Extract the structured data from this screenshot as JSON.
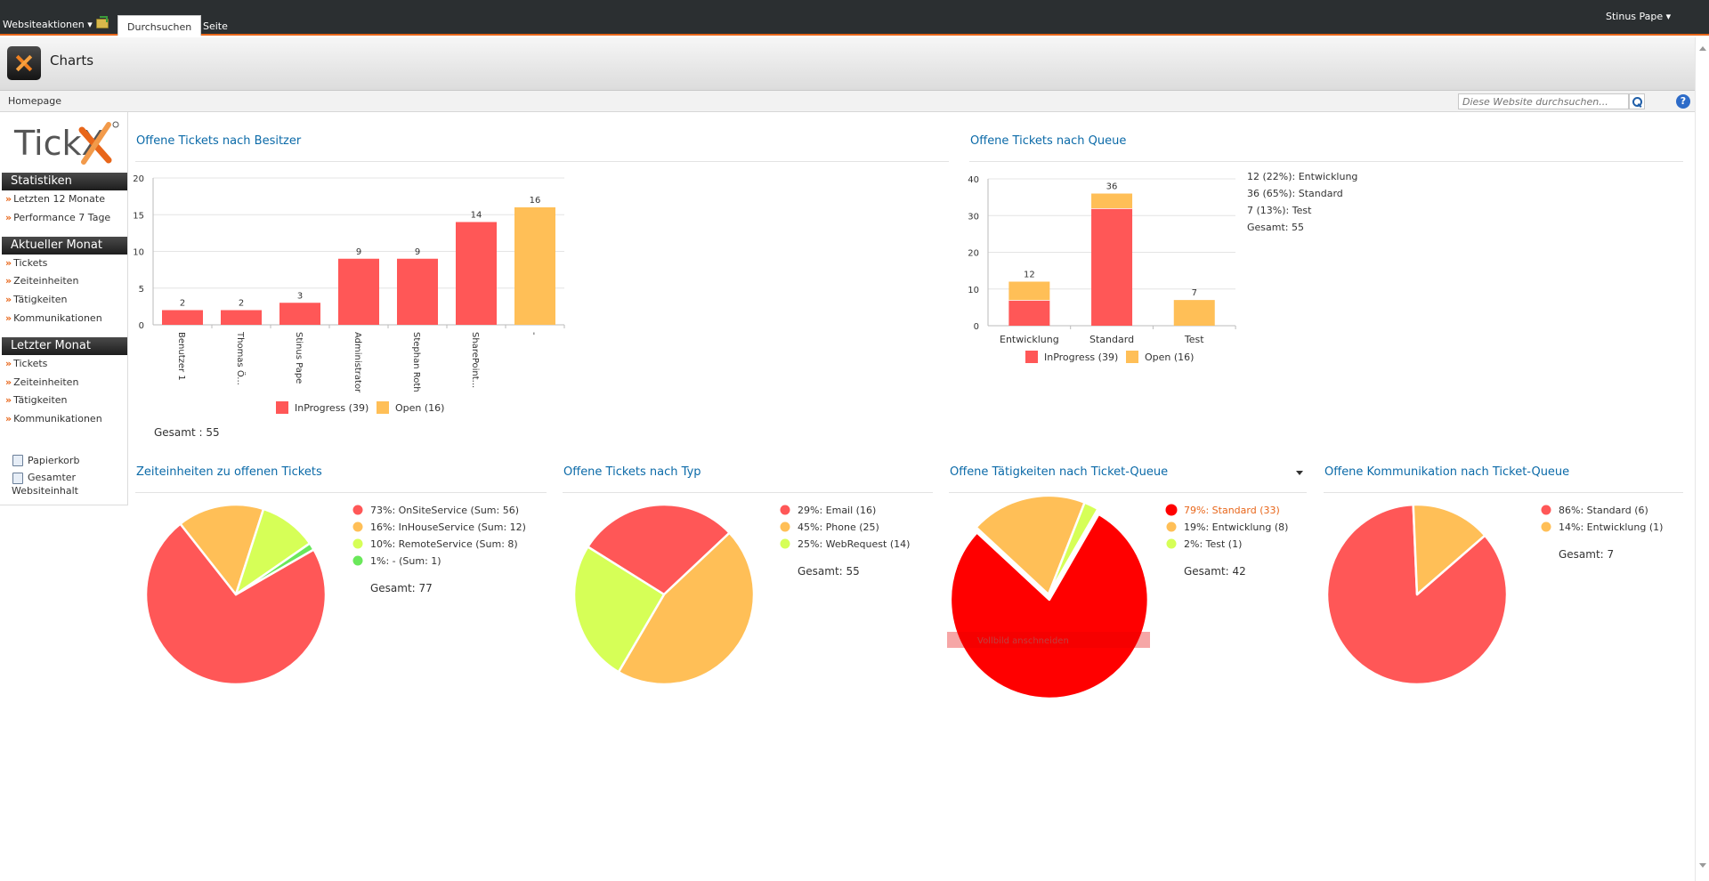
{
  "ribbon": {
    "site_actions": "Websiteaktionen ▾",
    "tab_browse": "Durchsuchen",
    "tab_page": "Seite",
    "user": "Stinus Pape ▾"
  },
  "site": {
    "title": "Charts"
  },
  "breadcrumb": "Homepage",
  "search": {
    "placeholder": "Diese Website durchsuchen..."
  },
  "help_label": "?",
  "nav": {
    "logo_text": "TickX",
    "sections": [
      {
        "header": "Statistiken",
        "links": [
          "Letzten 12 Monate",
          "Performance 7 Tage"
        ]
      },
      {
        "header": "Aktueller Monat",
        "links": [
          "Tickets",
          "Zeiteinheiten",
          "Tätigkeiten",
          "Kommunikationen"
        ]
      },
      {
        "header": "Letzter Monat",
        "links": [
          "Tickets",
          "Zeiteinheiten",
          "Tätigkeiten",
          "Kommunikationen"
        ]
      }
    ],
    "recycle_bin": "Papierkorb",
    "all_content_line1": "Gesamter",
    "all_content_line2": "Websiteinhalt"
  },
  "colors": {
    "inprogress": "#ff5757",
    "open": "#ffbf57",
    "email": "#ff5757",
    "phone": "#ffbf57",
    "webrequest": "#d6ff57",
    "remote": "#d6ff57",
    "dash": "#6ae85a",
    "highlight_red": "#ff0000"
  },
  "chart_data": [
    {
      "title": "Offene Tickets nach Besitzer",
      "type": "bar",
      "stacked": true,
      "categories": [
        "Benutzer 1",
        "Thomas Ö...",
        "Stinus Pape",
        "Administrator",
        "Stephan Roth",
        "SharePoint...",
        "-"
      ],
      "series": [
        {
          "name": "InProgress (39)",
          "values": [
            2,
            2,
            3,
            9,
            9,
            14,
            0
          ]
        },
        {
          "name": "Open (16)",
          "values": [
            0,
            0,
            0,
            0,
            0,
            0,
            16
          ]
        }
      ],
      "totals": [
        2,
        2,
        3,
        9,
        9,
        14,
        16
      ],
      "ylim": [
        0,
        20
      ],
      "yticks": [
        0,
        5,
        10,
        15,
        20
      ],
      "legend": "bottom",
      "gesamt": "Gesamt : 55"
    },
    {
      "title": "Offene Tickets nach Queue",
      "type": "bar",
      "stacked": true,
      "categories": [
        "Entwicklung",
        "Standard",
        "Test"
      ],
      "series": [
        {
          "name": "InProgress (39)",
          "values": [
            7,
            32,
            0
          ]
        },
        {
          "name": "Open (16)",
          "values": [
            5,
            4,
            7
          ]
        }
      ],
      "totals": [
        12,
        36,
        7
      ],
      "ylim": [
        0,
        40
      ],
      "yticks": [
        0,
        10,
        20,
        30,
        40
      ],
      "legend": "bottom",
      "side_text": [
        "12 (22%): Entwicklung",
        "36 (65%): Standard",
        "7 (13%): Test",
        "Gesamt: 55"
      ]
    },
    {
      "title": "Zeiteinheiten zu offenen Tickets",
      "type": "pie",
      "slices": [
        {
          "label": "73%: OnSiteService (Sum: 56)",
          "value": 56
        },
        {
          "label": "16%: InHouseService (Sum: 12)",
          "value": 12
        },
        {
          "label": "10%: RemoteService (Sum: 8)",
          "value": 8
        },
        {
          "label": "1%: - (Sum: 1)",
          "value": 1
        }
      ],
      "gesamt": "Gesamt: 77"
    },
    {
      "title": "Offene Tickets nach Typ",
      "type": "pie",
      "slices": [
        {
          "label": "29%: Email (16)",
          "value": 16
        },
        {
          "label": "45%: Phone (25)",
          "value": 25
        },
        {
          "label": "25%: WebRequest (14)",
          "value": 14
        }
      ],
      "gesamt": "Gesamt: 55"
    },
    {
      "title": "Offene Tätigkeiten nach Ticket-Queue",
      "type": "pie",
      "slices": [
        {
          "label": "79%: Standard (33)",
          "value": 33
        },
        {
          "label": "19%: Entwicklung (8)",
          "value": 8
        },
        {
          "label": "2%: Test (1)",
          "value": 1
        }
      ],
      "highlighted": 0,
      "gesamt": "Gesamt: 42",
      "overlay_text": "Vollbild anschneiden"
    },
    {
      "title": "Offene Kommunikation nach Ticket-Queue",
      "type": "pie",
      "slices": [
        {
          "label": "86%: Standard (6)",
          "value": 6
        },
        {
          "label": "14%: Entwicklung (1)",
          "value": 1
        }
      ],
      "gesamt": "Gesamt: 7"
    }
  ]
}
